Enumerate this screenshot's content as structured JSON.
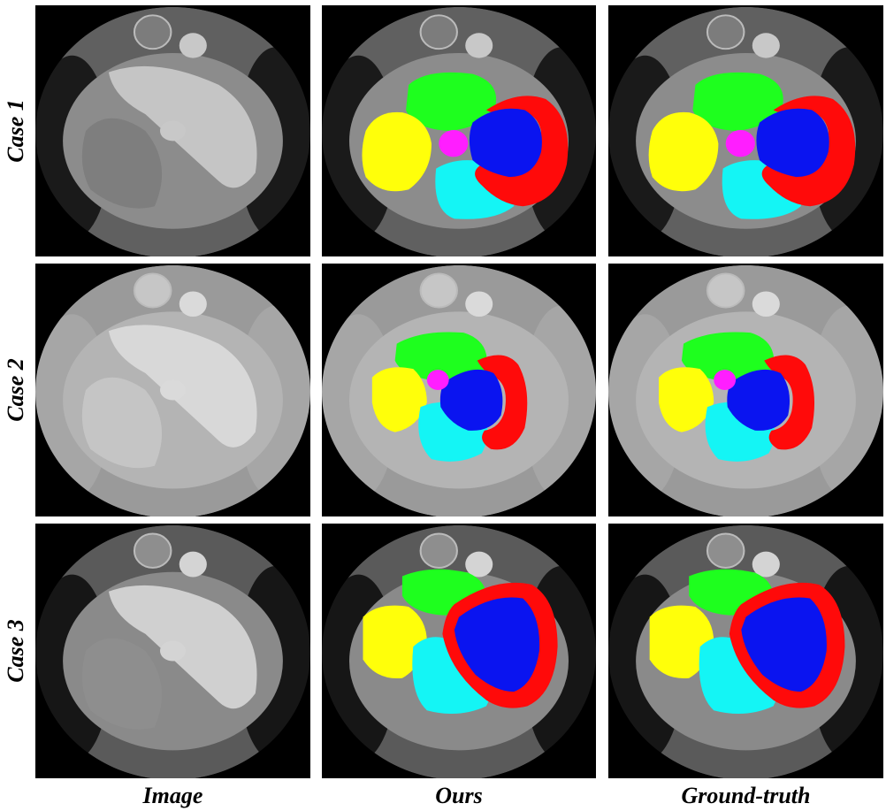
{
  "rows": [
    {
      "label": "Case 1"
    },
    {
      "label": "Case 2"
    },
    {
      "label": "Case 3"
    }
  ],
  "columns": [
    {
      "label": "Image"
    },
    {
      "label": "Ours"
    },
    {
      "label": "Ground-truth"
    }
  ],
  "segmentation_colors": {
    "left_ventricle_cavity": "#0a14f0",
    "myocardium": "#ff0a0a",
    "right_ventricle": "#ffff0a",
    "left_atrium": "#1eff1e",
    "right_atrium": "#14f5f5",
    "aorta": "#ff1eff"
  }
}
